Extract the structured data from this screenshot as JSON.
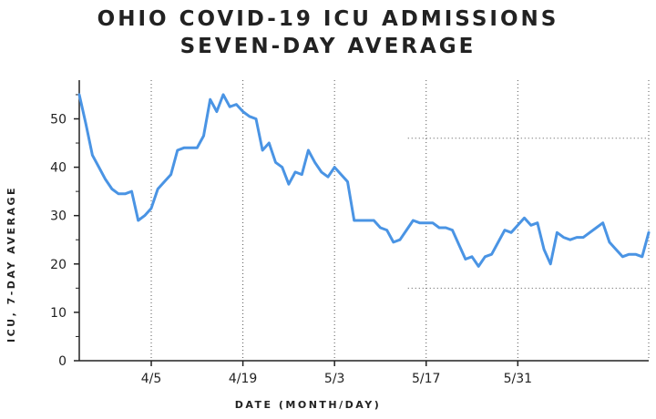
{
  "chart_data": {
    "type": "line",
    "title": "OHIO COVID-19 ICU ADMISSIONS",
    "subtitle": "SEVEN-DAY AVERAGE",
    "xlabel": "DATE (MONTH/DAY)",
    "ylabel": "ICU, 7-DAY AVERAGE",
    "ylim": [
      0,
      58
    ],
    "yticks": [
      0,
      10,
      20,
      30,
      40,
      50
    ],
    "xticks": [
      {
        "label": "4/5",
        "day": 11
      },
      {
        "label": "4/19",
        "day": 25
      },
      {
        "label": "5/3",
        "day": 39
      },
      {
        "label": "5/17",
        "day": 53
      },
      {
        "label": "5/31",
        "day": 67
      }
    ],
    "grid": "x-dotted",
    "line_color": "#4a94e4",
    "series": [
      {
        "values": [
          55,
          49,
          42.5,
          40,
          37.5,
          35.5,
          34.5,
          34.5,
          35,
          29,
          30,
          31.5,
          35.5,
          37,
          38.5,
          43.5,
          44,
          44,
          44,
          46.5,
          54,
          51.5,
          55,
          52.5,
          53,
          51.5,
          50.5,
          50,
          43.5,
          45,
          41,
          40,
          36.5,
          39,
          38.5,
          43.5,
          41,
          39,
          38,
          40,
          38.5,
          37,
          29,
          29,
          29,
          29,
          27.5,
          27,
          24.5,
          25,
          27,
          29,
          28.5,
          28.5,
          28.5,
          27.5,
          27.5,
          27,
          24,
          21,
          21.5,
          19.5,
          21.5,
          22,
          24.5,
          27,
          26.5,
          28,
          29.5,
          28,
          28.5,
          23,
          20,
          26.5,
          25.5,
          25,
          25.5,
          25.5,
          26.5,
          27.5,
          28.5,
          24.5,
          23,
          21.5,
          22,
          22,
          21.5,
          26.5
        ]
      }
    ]
  }
}
